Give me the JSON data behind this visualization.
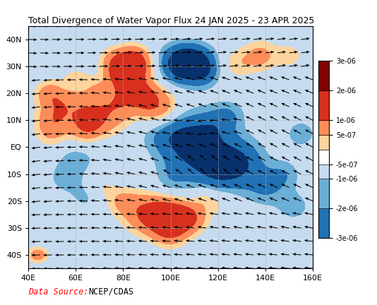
{
  "title": "Total Divergence of Water Vapor Flux 24 JAN 2025 - 23 APR 2025",
  "data_source_label": "Data Source:",
  "data_source": "NCEP/CDAS",
  "lon_min": 40,
  "lon_max": 160,
  "lat_min": -45,
  "lat_max": 45,
  "xticks": [
    40,
    60,
    80,
    100,
    120,
    140,
    160
  ],
  "yticks": [
    -40,
    -30,
    -20,
    -10,
    0,
    10,
    20,
    30,
    40
  ],
  "title_fontsize": 9,
  "tick_fontsize": 8,
  "colorbar_fontsize": 7,
  "datasource_label_color": "#ff0000",
  "datasource_text_color": "#000000",
  "background_color": "#ffffff",
  "grid_color": "#aaaaaa",
  "map_background": "#ffffff",
  "cb_colors": [
    "#08306b",
    "#2171b5",
    "#6baed6",
    "#c6dbef",
    "#ffffff",
    "#fdd49e",
    "#fc8d59",
    "#d7301f",
    "#7f0000"
  ],
  "cb_levels": [
    -3e-06,
    -2e-06,
    -1e-06,
    -5e-07,
    0,
    5e-07,
    1e-06,
    2e-06,
    3e-06
  ],
  "cb_tick_vals": [
    -3e-06,
    -2e-06,
    -1e-06,
    -5e-07,
    5e-07,
    1e-06,
    2e-06,
    3e-06
  ],
  "cb_tick_labels": [
    "-3e-06",
    "-2e-06",
    "-1e-06",
    "-5e-07",
    "5e-07",
    "1e-06",
    "2e-06",
    "3e-06"
  ],
  "contourf_levels": [
    -3e-06,
    -2e-06,
    -1e-06,
    -5e-07,
    5e-07,
    1e-06,
    2e-06,
    3e-06
  ],
  "contourf_colors": [
    "#08306b",
    "#2171b5",
    "#6baed6",
    "#c6dbef",
    "#fdd49e",
    "#fc8d59",
    "#d7301f",
    "#7f0000"
  ],
  "blobs_pos": [
    [
      55,
      15,
      1.2e-06,
      6,
      5
    ],
    [
      50,
      8,
      1.5e-06,
      5,
      5
    ],
    [
      52,
      20,
      8e-07,
      5,
      4
    ],
    [
      60,
      25,
      6e-07,
      5,
      4
    ],
    [
      72,
      13,
      1.5e-06,
      7,
      6
    ],
    [
      65,
      8,
      2e-06,
      5,
      5
    ],
    [
      70,
      22,
      5e-07,
      4,
      3
    ],
    [
      80,
      18,
      1.2e-06,
      5,
      5
    ],
    [
      84,
      31,
      3.5e-06,
      5,
      4
    ],
    [
      82,
      26,
      2e-06,
      4,
      4
    ],
    [
      78,
      28,
      1.5e-06,
      4,
      3
    ],
    [
      75,
      33,
      8e-07,
      4,
      3
    ],
    [
      88,
      20,
      1.5e-06,
      4,
      4
    ],
    [
      92,
      16,
      1.5e-06,
      5,
      5
    ],
    [
      98,
      14,
      1e-06,
      5,
      5
    ],
    [
      128,
      31,
      8e-07,
      5,
      4
    ],
    [
      138,
      34,
      1.2e-06,
      5,
      4
    ],
    [
      150,
      34,
      8e-07,
      4,
      3
    ],
    [
      92,
      -25,
      2.5e-06,
      7,
      5
    ],
    [
      100,
      -28,
      3e-06,
      5,
      5
    ],
    [
      108,
      -26,
      2e-06,
      5,
      4
    ],
    [
      80,
      -20,
      1e-06,
      5,
      4
    ],
    [
      70,
      -15,
      7e-07,
      5,
      4
    ],
    [
      120,
      -20,
      8e-07,
      5,
      4
    ],
    [
      44,
      -40,
      1.5e-06,
      3,
      2
    ],
    [
      114,
      -18,
      6e-07,
      3,
      3
    ],
    [
      48,
      20,
      7e-07,
      4,
      3
    ]
  ],
  "blobs_neg": [
    [
      107,
      33,
      -2.8e-06,
      7,
      4
    ],
    [
      113,
      28,
      -2e-06,
      5,
      4
    ],
    [
      103,
      28,
      -1.5e-06,
      5,
      4
    ],
    [
      55,
      22,
      -6e-07,
      4,
      3
    ],
    [
      100,
      5,
      -1.5e-06,
      8,
      6
    ],
    [
      110,
      0,
      -1.8e-06,
      8,
      7
    ],
    [
      120,
      -8,
      -2e-06,
      8,
      7
    ],
    [
      130,
      -5,
      -1.5e-06,
      7,
      6
    ],
    [
      118,
      8,
      -1e-06,
      6,
      5
    ],
    [
      125,
      12,
      -8e-07,
      5,
      4
    ],
    [
      140,
      -15,
      -1e-06,
      6,
      5
    ],
    [
      148,
      -10,
      -8e-07,
      5,
      4
    ],
    [
      155,
      5,
      -8e-07,
      5,
      4
    ],
    [
      60,
      -5,
      -8e-07,
      6,
      5
    ],
    [
      68,
      2,
      -5e-07,
      5,
      4
    ],
    [
      80,
      -8,
      -5e-07,
      5,
      4
    ],
    [
      100,
      -12,
      -8e-07,
      5,
      5
    ],
    [
      65,
      -18,
      -8e-07,
      5,
      4
    ],
    [
      55,
      -12,
      -6e-07,
      5,
      4
    ],
    [
      152,
      -22,
      -8e-07,
      5,
      4
    ]
  ]
}
